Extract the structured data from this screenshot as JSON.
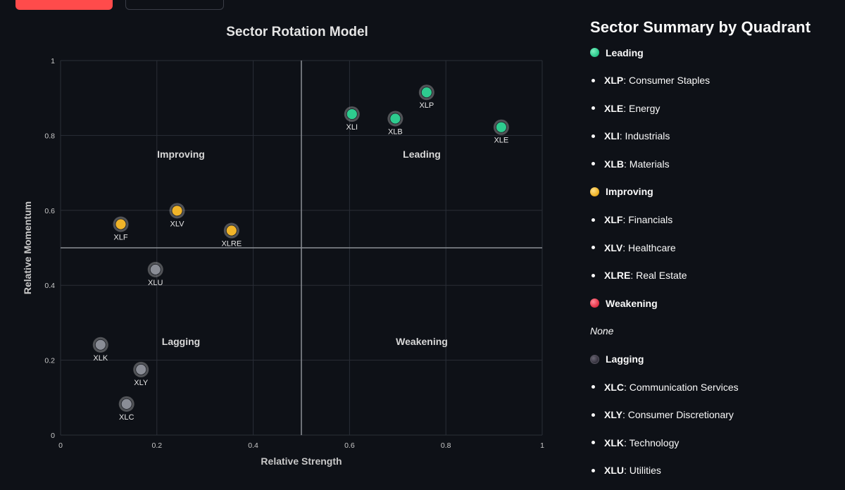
{
  "colors": {
    "background": "#0e1117",
    "leading": "#2ecc8f",
    "improving": "#f0b429",
    "weakening": "#e8394d",
    "lagging": "#8a8d96",
    "lagging_dot": "#3a3743",
    "primary_button": "#ff4b4b"
  },
  "chart_data": {
    "type": "scatter",
    "title": "Sector Rotation Model",
    "xlabel": "Relative Strength",
    "ylabel": "Relative Momentum",
    "xlim": [
      0,
      1
    ],
    "ylim": [
      0,
      1
    ],
    "xticks": [
      0,
      0.2,
      0.4,
      0.6,
      0.8,
      1
    ],
    "yticks": [
      0,
      0.2,
      0.4,
      0.6,
      0.8,
      1
    ],
    "xtick_labels": [
      "0",
      "0.2",
      "0.4",
      "0.6",
      "0.8",
      "1"
    ],
    "ytick_labels": [
      "0",
      "0.2",
      "0.4",
      "0.6",
      "0.8",
      "1"
    ],
    "grid": true,
    "dividers": {
      "x": 0.5,
      "y": 0.5
    },
    "quadrant_labels": [
      {
        "text": "Improving",
        "x": 0.25,
        "y": 0.75
      },
      {
        "text": "Leading",
        "x": 0.75,
        "y": 0.75
      },
      {
        "text": "Lagging",
        "x": 0.25,
        "y": 0.25
      },
      {
        "text": "Weakening",
        "x": 0.75,
        "y": 0.25
      }
    ],
    "points": [
      {
        "label": "XLP",
        "x": 0.76,
        "y": 0.915,
        "quadrant": "leading"
      },
      {
        "label": "XLI",
        "x": 0.605,
        "y": 0.857,
        "quadrant": "leading"
      },
      {
        "label": "XLB",
        "x": 0.695,
        "y": 0.845,
        "quadrant": "leading"
      },
      {
        "label": "XLE",
        "x": 0.915,
        "y": 0.822,
        "quadrant": "leading"
      },
      {
        "label": "XLF",
        "x": 0.125,
        "y": 0.563,
        "quadrant": "improving"
      },
      {
        "label": "XLV",
        "x": 0.242,
        "y": 0.599,
        "quadrant": "improving"
      },
      {
        "label": "XLRE",
        "x": 0.355,
        "y": 0.546,
        "quadrant": "improving"
      },
      {
        "label": "XLU",
        "x": 0.197,
        "y": 0.442,
        "quadrant": "lagging"
      },
      {
        "label": "XLK",
        "x": 0.083,
        "y": 0.241,
        "quadrant": "lagging"
      },
      {
        "label": "XLY",
        "x": 0.167,
        "y": 0.175,
        "quadrant": "lagging"
      },
      {
        "label": "XLC",
        "x": 0.137,
        "y": 0.083,
        "quadrant": "lagging"
      }
    ]
  },
  "summary": {
    "title": "Sector Summary by Quadrant",
    "leading": {
      "label": "Leading",
      "items": [
        {
          "ticker": "XLP",
          "name": ": Consumer Staples"
        },
        {
          "ticker": "XLE",
          "name": ": Energy"
        },
        {
          "ticker": "XLI",
          "name": ": Industrials"
        },
        {
          "ticker": "XLB",
          "name": ": Materials"
        }
      ]
    },
    "improving": {
      "label": "Improving",
      "items": [
        {
          "ticker": "XLF",
          "name": ": Financials"
        },
        {
          "ticker": "XLV",
          "name": ": Healthcare"
        },
        {
          "ticker": "XLRE",
          "name": ": Real Estate"
        }
      ]
    },
    "weakening": {
      "label": "Weakening",
      "none_text": "None"
    },
    "lagging": {
      "label": "Lagging",
      "items": [
        {
          "ticker": "XLC",
          "name": ": Communication Services"
        },
        {
          "ticker": "XLY",
          "name": ": Consumer Discretionary"
        },
        {
          "ticker": "XLK",
          "name": ": Technology"
        },
        {
          "ticker": "XLU",
          "name": ": Utilities"
        }
      ]
    }
  }
}
